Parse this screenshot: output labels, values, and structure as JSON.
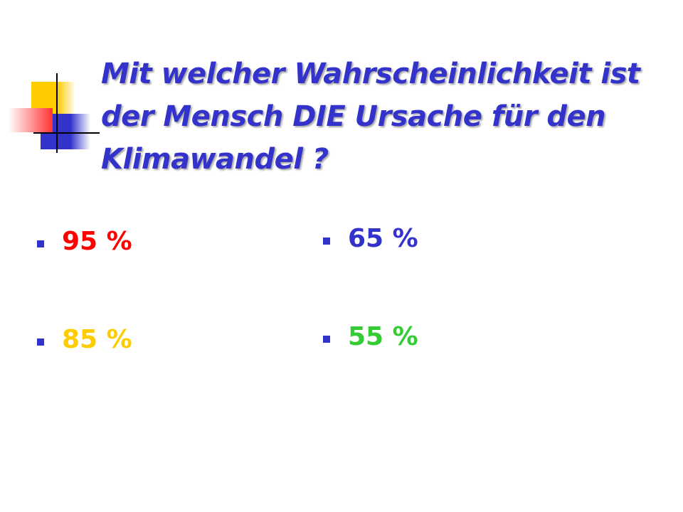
{
  "title": {
    "lines": [
      "Mit welcher Wahrscheinlichkeit ist",
      "der Mensch DIE Ursache für den",
      "Klimawandel ?"
    ],
    "color": "#3333cc"
  },
  "options": [
    {
      "text": "95 %",
      "color": "#ff0000"
    },
    {
      "text": "85 %",
      "color": "#ffcc00"
    },
    {
      "text": "65 %",
      "color": "#3333cc"
    },
    {
      "text": "55 %",
      "color": "#33cc33"
    }
  ],
  "bullet_color": "#3333cc"
}
